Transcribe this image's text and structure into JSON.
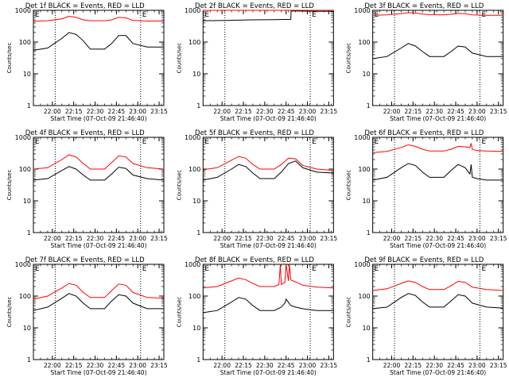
{
  "figure": {
    "x_tick_labels": [
      "22:00",
      "22:15",
      "22:30",
      "22:45",
      "23:00",
      "23:15"
    ],
    "y_tick_labels": [
      "1",
      "10",
      "100",
      "1000"
    ],
    "ylabel": "Counts/sec",
    "xlabel": "Start Time (07-Oct-09 21:46:40)",
    "corner_marks": [
      "E",
      "E"
    ],
    "series_colors": {
      "events": "#000000",
      "lld": "#ff0000"
    }
  },
  "chart_data": [
    {
      "type": "line",
      "title": "Det 1f BLACK = Events, RED = LLD",
      "xlabel": "Start Time (07-Oct-09 21:46:40)",
      "ylabel": "Counts/sec",
      "x_range_seconds": [
        0,
        5500
      ],
      "ylim": [
        1,
        1000
      ],
      "y_scale": "log",
      "xticks": [
        "22:00",
        "22:15",
        "22:30",
        "22:45",
        "23:00",
        "23:15"
      ],
      "yticks": [
        "1",
        "10",
        "100",
        "1000"
      ],
      "vertical_dotted_lines": [
        "22:02",
        "23:02"
      ],
      "corner_marks": [
        "E",
        "E"
      ],
      "series": [
        {
          "color": "#000000",
          "x": [
            0,
            600,
            1200,
            1500,
            1800,
            2100,
            2400,
            3000,
            3300,
            3600,
            3900,
            4200,
            4800,
            5500
          ],
          "y": [
            55,
            65,
            130,
            200,
            175,
            110,
            60,
            60,
            90,
            160,
            160,
            90,
            70,
            70
          ]
        },
        {
          "color": "#ff0000",
          "x": [
            0,
            600,
            1200,
            1500,
            1800,
            2100,
            2400,
            3000,
            3300,
            3600,
            3900,
            4200,
            4800,
            5500
          ],
          "y": [
            450,
            470,
            540,
            650,
            600,
            500,
            470,
            470,
            500,
            600,
            580,
            480,
            460,
            460
          ]
        }
      ]
    },
    {
      "type": "line",
      "title": "Det 2f BLACK = Events, RED = LLD",
      "xlabel": "Start Time (07-Oct-09 21:46:40)",
      "ylabel": "Counts/sec",
      "x_range_seconds": [
        0,
        5500
      ],
      "ylim": [
        1,
        1000
      ],
      "y_scale": "log",
      "xticks": [
        "22:00",
        "22:15",
        "22:30",
        "22:45",
        "23:00",
        "23:15"
      ],
      "yticks": [
        "1",
        "10",
        "100",
        "1000"
      ],
      "vertical_dotted_lines": [
        "22:02",
        "23:02"
      ],
      "corner_marks": [
        "E",
        "E"
      ],
      "series": [
        {
          "color": "#000000",
          "x": [
            0,
            1000,
            2000,
            3000,
            3700,
            3710,
            4500,
            5500
          ],
          "y": [
            470,
            480,
            500,
            510,
            520,
            960,
            940,
            930
          ]
        },
        {
          "color": "#ff0000",
          "x": [
            0,
            1000,
            2000,
            3000,
            4000,
            5500
          ],
          "y": [
            1250,
            1270,
            1280,
            1290,
            1300,
            1280
          ]
        }
      ]
    },
    {
      "type": "line",
      "title": "Det 3f BLACK = Events, RED = LLD",
      "xlabel": "Start Time (07-Oct-09 21:46:40)",
      "ylabel": "Counts/sec",
      "x_range_seconds": [
        0,
        5500
      ],
      "ylim": [
        1,
        1000
      ],
      "y_scale": "log",
      "xticks": [
        "22:00",
        "22:15",
        "22:30",
        "22:45",
        "23:00",
        "23:15"
      ],
      "yticks": [
        "1",
        "10",
        "100",
        "1000"
      ],
      "vertical_dotted_lines": [
        "22:02",
        "23:02"
      ],
      "corner_marks": [
        "E",
        "E"
      ],
      "series": [
        {
          "color": "#000000",
          "x": [
            0,
            600,
            1200,
            1500,
            1800,
            2100,
            2400,
            3000,
            3300,
            3600,
            3900,
            4200,
            4800,
            5500
          ],
          "y": [
            30,
            35,
            65,
            90,
            75,
            50,
            35,
            35,
            50,
            75,
            70,
            45,
            35,
            35
          ]
        },
        {
          "color": "#ff0000",
          "x": [
            0,
            600,
            1200,
            1500,
            1800,
            2100,
            2400,
            3000,
            3300,
            3600,
            3900,
            4200,
            4800,
            5500
          ],
          "y": [
            700,
            720,
            780,
            840,
            820,
            760,
            730,
            720,
            750,
            800,
            780,
            720,
            700,
            700
          ]
        }
      ]
    },
    {
      "type": "line",
      "title": "Det 4f BLACK = Events, RED = LLD",
      "xlabel": "Start Time (07-Oct-09 21:46:40)",
      "ylabel": "Counts/sec",
      "x_range_seconds": [
        0,
        5500
      ],
      "ylim": [
        1,
        1000
      ],
      "y_scale": "log",
      "xticks": [
        "22:00",
        "22:15",
        "22:30",
        "22:45",
        "23:00",
        "23:15"
      ],
      "yticks": [
        "1",
        "10",
        "100",
        "1000"
      ],
      "vertical_dotted_lines": [
        "22:02",
        "23:02"
      ],
      "corner_marks": [
        "E",
        "E"
      ],
      "series": [
        {
          "color": "#000000",
          "x": [
            0,
            600,
            1200,
            1500,
            1800,
            2100,
            2400,
            3000,
            3300,
            3600,
            3900,
            4200,
            4800,
            5500
          ],
          "y": [
            45,
            50,
            90,
            120,
            100,
            65,
            45,
            45,
            70,
            115,
            105,
            65,
            50,
            45
          ]
        },
        {
          "color": "#ff0000",
          "x": [
            0,
            600,
            1200,
            1500,
            1800,
            2100,
            2400,
            3000,
            3300,
            3600,
            3900,
            4200,
            4800,
            5500
          ],
          "y": [
            100,
            110,
            200,
            280,
            240,
            150,
            100,
            100,
            160,
            260,
            240,
            150,
            110,
            100
          ]
        }
      ]
    },
    {
      "type": "line",
      "title": "Det 5f BLACK = Events, RED = LLD",
      "xlabel": "Start Time (07-Oct-09 21:46:40)",
      "ylabel": "Counts/sec",
      "x_range_seconds": [
        0,
        5500
      ],
      "ylim": [
        1,
        1000
      ],
      "y_scale": "log",
      "xticks": [
        "22:00",
        "22:15",
        "22:30",
        "22:45",
        "23:00",
        "23:15"
      ],
      "yticks": [
        "1",
        "10",
        "100",
        "1000"
      ],
      "vertical_dotted_lines": [
        "22:02",
        "23:02"
      ],
      "corner_marks": [
        "E",
        "E"
      ],
      "series": [
        {
          "color": "#000000",
          "x": [
            0,
            600,
            1200,
            1500,
            1800,
            2100,
            2400,
            3000,
            3300,
            3600,
            3900,
            4200,
            4800,
            5500
          ],
          "y": [
            45,
            55,
            100,
            140,
            120,
            75,
            50,
            50,
            80,
            150,
            180,
            110,
            80,
            75
          ]
        },
        {
          "color": "#ff0000",
          "x": [
            0,
            600,
            1200,
            1500,
            1800,
            2100,
            2400,
            3000,
            3300,
            3600,
            3900,
            4200,
            4800,
            5500
          ],
          "y": [
            95,
            110,
            190,
            250,
            220,
            140,
            100,
            100,
            140,
            220,
            210,
            130,
            100,
            90
          ]
        }
      ]
    },
    {
      "type": "line",
      "title": "Det 6f BLACK = Events, RED = LLD",
      "xlabel": "Start Time (07-Oct-09 21:46:40)",
      "ylabel": "Counts/sec",
      "x_range_seconds": [
        0,
        5500
      ],
      "ylim": [
        1,
        1000
      ],
      "y_scale": "log",
      "xticks": [
        "22:00",
        "22:15",
        "22:30",
        "22:45",
        "23:00",
        "23:15"
      ],
      "yticks": [
        "1",
        "10",
        "100",
        "1000"
      ],
      "vertical_dotted_lines": [
        "22:02",
        "23:02"
      ],
      "corner_marks": [
        "E",
        "E"
      ],
      "series": [
        {
          "color": "#000000",
          "x": [
            0,
            600,
            1200,
            1500,
            1800,
            2100,
            2400,
            3000,
            3300,
            3600,
            3900,
            4100,
            4150,
            4200,
            4400,
            4800,
            5500
          ],
          "y": [
            45,
            55,
            110,
            150,
            130,
            80,
            55,
            55,
            90,
            140,
            110,
            70,
            140,
            55,
            50,
            45,
            45
          ]
        },
        {
          "color": "#ff0000",
          "x": [
            0,
            600,
            1200,
            1500,
            1800,
            2100,
            2400,
            3000,
            3300,
            3600,
            3900,
            4100,
            4150,
            4200,
            4400,
            4800,
            5500
          ],
          "y": [
            330,
            360,
            480,
            580,
            520,
            420,
            370,
            370,
            420,
            520,
            500,
            480,
            650,
            420,
            380,
            370,
            360
          ]
        }
      ]
    },
    {
      "type": "line",
      "title": "Det 7f BLACK = Events, RED = LLD",
      "xlabel": "Start Time (07-Oct-09 21:46:40)",
      "ylabel": "Counts/sec",
      "x_range_seconds": [
        0,
        5500
      ],
      "ylim": [
        1,
        1000
      ],
      "y_scale": "log",
      "xticks": [
        "22:00",
        "22:15",
        "22:30",
        "22:45",
        "23:00",
        "23:15"
      ],
      "yticks": [
        "1",
        "10",
        "100",
        "1000"
      ],
      "vertical_dotted_lines": [
        "22:02",
        "23:02"
      ],
      "corner_marks": [
        "E",
        "E"
      ],
      "series": [
        {
          "color": "#000000",
          "x": [
            0,
            600,
            1200,
            1500,
            1800,
            2100,
            2400,
            3000,
            3300,
            3600,
            3900,
            4200,
            4800,
            5500
          ],
          "y": [
            35,
            45,
            85,
            120,
            100,
            60,
            40,
            40,
            70,
            110,
            100,
            60,
            40,
            40
          ]
        },
        {
          "color": "#ff0000",
          "x": [
            0,
            600,
            1200,
            1500,
            1800,
            2100,
            2400,
            3000,
            3300,
            3600,
            3900,
            4200,
            4800,
            5500
          ],
          "y": [
            80,
            100,
            180,
            250,
            220,
            130,
            90,
            90,
            150,
            240,
            220,
            130,
            90,
            85
          ]
        }
      ]
    },
    {
      "type": "line",
      "title": "Det 8f BLACK = Events, RED = LLD",
      "xlabel": "Start Time (07-Oct-09 21:46:40)",
      "ylabel": "Counts/sec",
      "x_range_seconds": [
        0,
        5500
      ],
      "ylim": [
        1,
        1000
      ],
      "y_scale": "log",
      "xticks": [
        "22:00",
        "22:15",
        "22:30",
        "22:45",
        "23:00",
        "23:15"
      ],
      "yticks": [
        "1",
        "10",
        "100",
        "1000"
      ],
      "vertical_dotted_lines": [
        "22:02",
        "23:02"
      ],
      "corner_marks": [
        "E",
        "E"
      ],
      "series": [
        {
          "color": "#000000",
          "x": [
            0,
            600,
            1200,
            1500,
            1800,
            2100,
            2400,
            3000,
            3300,
            3450,
            3500,
            3700,
            3900,
            4200,
            4800,
            5500
          ],
          "y": [
            30,
            35,
            65,
            90,
            80,
            50,
            35,
            35,
            45,
            60,
            80,
            50,
            45,
            40,
            35,
            35
          ]
        },
        {
          "color": "#ff0000",
          "x": [
            0,
            600,
            1200,
            1500,
            1800,
            2100,
            2400,
            3000,
            3200,
            3260,
            3300,
            3450,
            3500,
            3600,
            3640,
            3700,
            3900,
            4200,
            4800,
            5500
          ],
          "y": [
            180,
            200,
            300,
            370,
            330,
            250,
            200,
            200,
            230,
            1000,
            230,
            270,
            1000,
            300,
            1000,
            320,
            280,
            220,
            190,
            180
          ]
        }
      ]
    },
    {
      "type": "line",
      "title": "Det 9f BLACK = Events, RED = LLD",
      "xlabel": "Start Time (07-Oct-09 21:46:40)",
      "ylabel": "Counts/sec",
      "x_range_seconds": [
        0,
        5500
      ],
      "ylim": [
        1,
        1000
      ],
      "y_scale": "log",
      "xticks": [
        "22:00",
        "22:15",
        "22:30",
        "22:45",
        "23:00",
        "23:15"
      ],
      "yticks": [
        "1",
        "10",
        "100",
        "1000"
      ],
      "vertical_dotted_lines": [
        "22:02",
        "23:02"
      ],
      "corner_marks": [
        "E",
        "E"
      ],
      "series": [
        {
          "color": "#000000",
          "x": [
            0,
            600,
            1200,
            1500,
            1800,
            2100,
            2400,
            3000,
            3300,
            3600,
            3900,
            4200,
            4800,
            5500
          ],
          "y": [
            40,
            45,
            90,
            120,
            105,
            65,
            45,
            45,
            70,
            110,
            100,
            60,
            45,
            42
          ]
        },
        {
          "color": "#ff0000",
          "x": [
            0,
            600,
            1200,
            1500,
            1800,
            2100,
            2400,
            3000,
            3300,
            3600,
            3900,
            4200,
            4800,
            5500
          ],
          "y": [
            150,
            170,
            250,
            300,
            270,
            200,
            160,
            160,
            210,
            290,
            270,
            190,
            160,
            150
          ]
        }
      ]
    }
  ]
}
